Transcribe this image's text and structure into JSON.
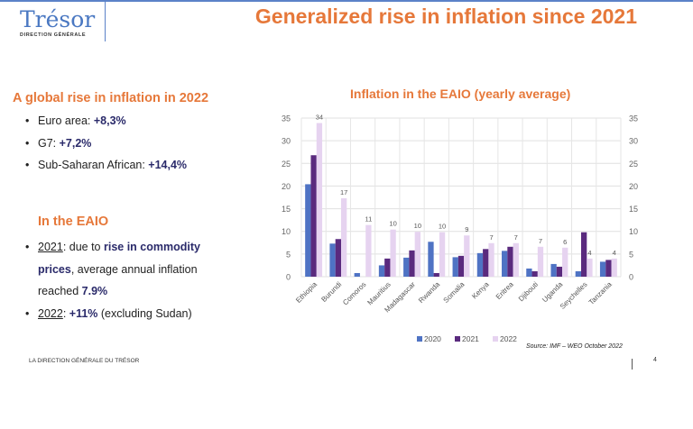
{
  "header": {
    "logo": "Trésor",
    "logo_sub": "DIRECTION GÉNÉRALE",
    "title": "Generalized rise in inflation since 2021"
  },
  "left": {
    "heading1": "A global rise in inflation in 2022",
    "items1": [
      {
        "label": "Euro area: ",
        "value": "+8,3%"
      },
      {
        "label": "G7: ",
        "value": "+7,2%"
      },
      {
        "label": "Sub-Saharan African: ",
        "value": "+14,4%"
      }
    ],
    "heading2": "In the EAIO",
    "items2": [
      {
        "year": "2021",
        "t1": ": due to ",
        "bold": "rise in commodity prices",
        "t2": ", average annual inflation reached ",
        "bold2": "7.9%"
      },
      {
        "year": "2022",
        "t1": ": ",
        "bold": "+11%",
        "t2": " (excluding Sudan)",
        "bold2": ""
      }
    ]
  },
  "chart_data": {
    "type": "bar",
    "title": "Inflation in the EAIO (yearly average)",
    "categories": [
      "Ethiopia",
      "Burundi",
      "Comoros",
      "Mauritius",
      "Madagascar",
      "Rwanda",
      "Somalia",
      "Kenya",
      "Eritrea",
      "Djibouti",
      "Uganda",
      "Seychelles",
      "Tanzania"
    ],
    "series": [
      {
        "name": "2020",
        "color": "#4f73c4",
        "values": [
          20.4,
          7.3,
          0.8,
          2.5,
          4.2,
          7.7,
          4.3,
          5.2,
          5.7,
          1.8,
          2.8,
          1.2,
          3.3
        ]
      },
      {
        "name": "2021",
        "color": "#5a2a7e",
        "values": [
          26.8,
          8.3,
          0,
          4.0,
          5.8,
          0.8,
          4.6,
          6.1,
          6.6,
          1.2,
          2.2,
          9.8,
          3.7
        ]
      },
      {
        "name": "2022",
        "color": "#e6d3f0",
        "values": [
          33.9,
          17.3,
          11.4,
          10.4,
          9.9,
          9.8,
          9.1,
          7.4,
          7.4,
          6.6,
          6.4,
          4.0,
          4.0
        ]
      }
    ],
    "data_labels_2022": [
      "34",
      "17",
      "11",
      "10",
      "10",
      "10",
      "9",
      "7",
      "7",
      "7",
      "6",
      "4",
      "4"
    ],
    "ylim": [
      0,
      35
    ],
    "yticks": [
      0,
      5,
      10,
      15,
      20,
      25,
      30,
      35
    ],
    "grid": true,
    "legend": "bottom",
    "source": "Source: IMF – WEO October 2022"
  },
  "footer": {
    "text": "LA DIRECTION GÉNÉRALE DU TRÉSOR",
    "page": "4"
  }
}
